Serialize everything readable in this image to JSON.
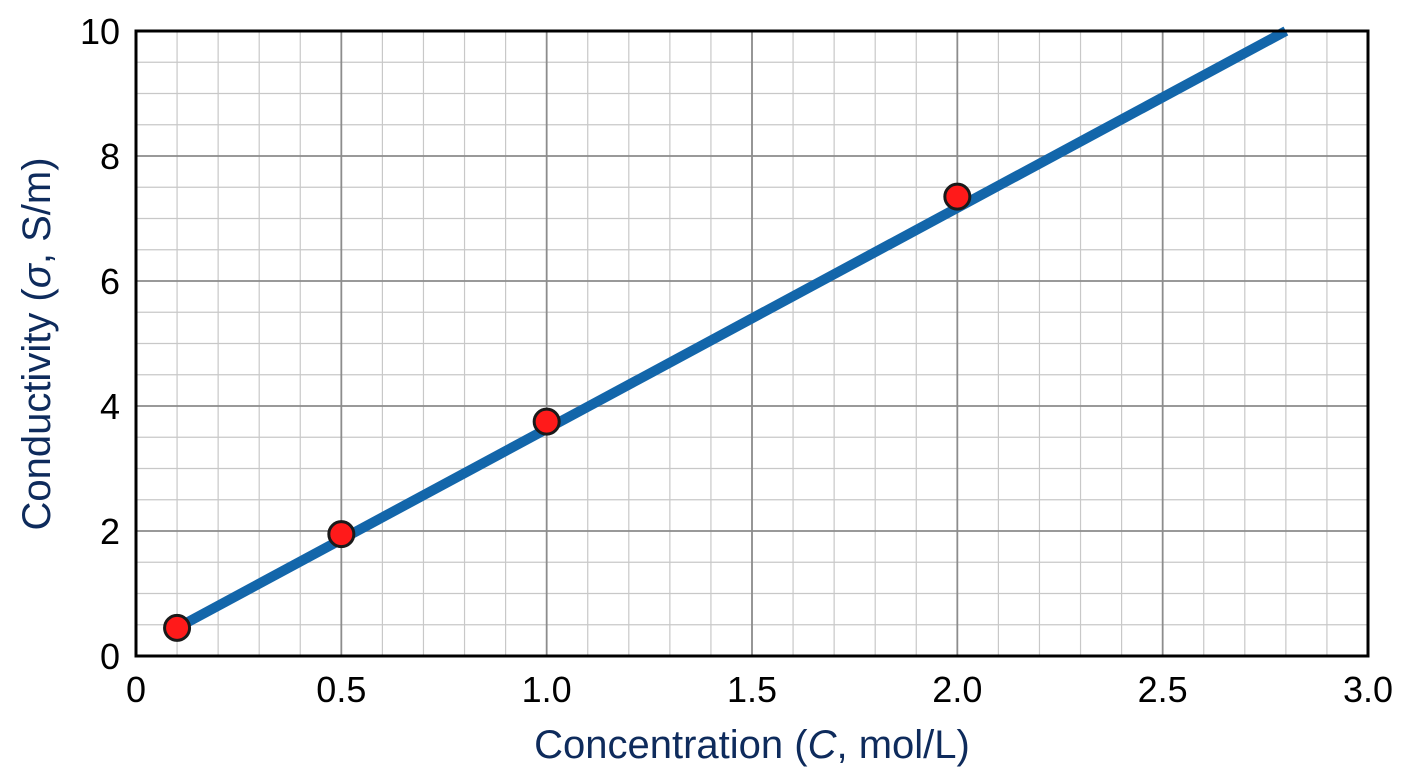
{
  "chart_data": {
    "type": "scatter",
    "title": "",
    "xlabel_parts": [
      "Concentration (",
      "C",
      ", mol/L)"
    ],
    "ylabel_parts": [
      "Conductivity (",
      "σ",
      ", S/m)"
    ],
    "xlim": [
      0,
      3.0
    ],
    "ylim": [
      0,
      10
    ],
    "x_ticks": [
      0,
      0.5,
      1.0,
      1.5,
      2.0,
      2.5,
      3.0
    ],
    "x_tick_labels": [
      "0",
      "0.5",
      "1.0",
      "1.5",
      "2.0",
      "2.5",
      "3.0"
    ],
    "y_ticks": [
      0,
      2,
      4,
      6,
      8,
      10
    ],
    "y_tick_labels": [
      "0",
      "2",
      "4",
      "6",
      "8",
      "10"
    ],
    "x_minor_step": 0.1,
    "y_minor_step": 0.5,
    "grid": true,
    "series": [
      {
        "kind": "points",
        "x": [
          0.1,
          0.5,
          1.0,
          2.0
        ],
        "y": [
          0.45,
          1.95,
          3.75,
          7.35
        ],
        "color": "#ff1a1a"
      },
      {
        "kind": "fit-line",
        "x": [
          0.1,
          2.8
        ],
        "y": [
          0.45,
          10.0
        ],
        "color": "#1366aa"
      }
    ],
    "axis_title_color": "#0e2b5c"
  }
}
